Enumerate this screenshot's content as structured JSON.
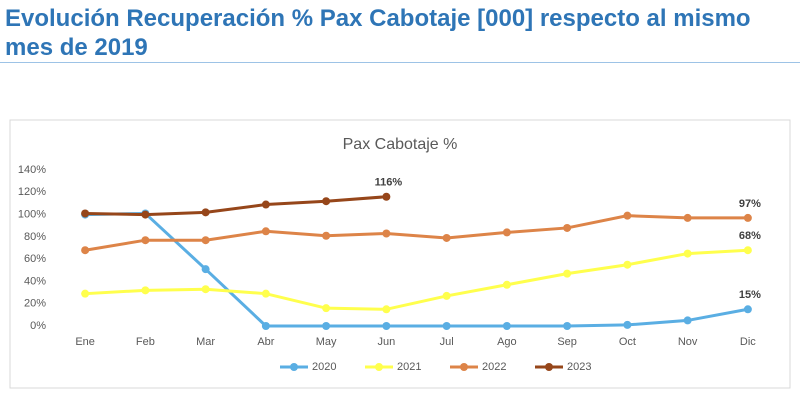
{
  "page_title": "Evolución Recuperación % Pax Cabotaje [000] respecto al mismo mes de 2019",
  "chart_data": {
    "type": "line",
    "title": "Pax Cabotaje %",
    "categories": [
      "Ene",
      "Feb",
      "Mar",
      "Abr",
      "May",
      "Jun",
      "Jul",
      "Ago",
      "Sep",
      "Oct",
      "Nov",
      "Dic"
    ],
    "series": [
      {
        "name": "2020",
        "color": "#5aaee3",
        "values": [
          100,
          101,
          51,
          0,
          0,
          0,
          0,
          0,
          0,
          1,
          5,
          15
        ],
        "value_labels": [
          null,
          null,
          null,
          null,
          null,
          null,
          null,
          null,
          null,
          null,
          null,
          "15%"
        ]
      },
      {
        "name": "2021",
        "color": "#ffff4d",
        "values": [
          29,
          32,
          33,
          29,
          16,
          15,
          27,
          37,
          47,
          55,
          65,
          68
        ],
        "value_labels": [
          null,
          null,
          null,
          null,
          null,
          null,
          null,
          null,
          null,
          null,
          null,
          "68%"
        ]
      },
      {
        "name": "2022",
        "color": "#dd8448",
        "values": [
          68,
          77,
          77,
          85,
          81,
          83,
          79,
          84,
          88,
          99,
          97,
          97
        ],
        "value_labels": [
          null,
          null,
          null,
          null,
          null,
          null,
          null,
          null,
          null,
          null,
          null,
          "97%"
        ]
      },
      {
        "name": "2023",
        "color": "#96461a",
        "values": [
          101,
          100,
          102,
          109,
          112,
          116,
          null,
          null,
          null,
          null,
          null,
          null
        ],
        "value_labels": [
          null,
          null,
          null,
          null,
          null,
          "116%",
          null,
          null,
          null,
          null,
          null,
          null
        ]
      }
    ],
    "ylim": [
      0,
      140
    ],
    "yticks": [
      {
        "value": 0,
        "label": "0%"
      },
      {
        "value": 20,
        "label": "20%"
      },
      {
        "value": 40,
        "label": "40%"
      },
      {
        "value": 60,
        "label": "60%"
      },
      {
        "value": 80,
        "label": "80%"
      },
      {
        "value": 100,
        "label": "100%"
      },
      {
        "value": 120,
        "label": "120%"
      },
      {
        "value": 140,
        "label": "140%"
      }
    ],
    "grid": false,
    "legend": "bottom"
  }
}
